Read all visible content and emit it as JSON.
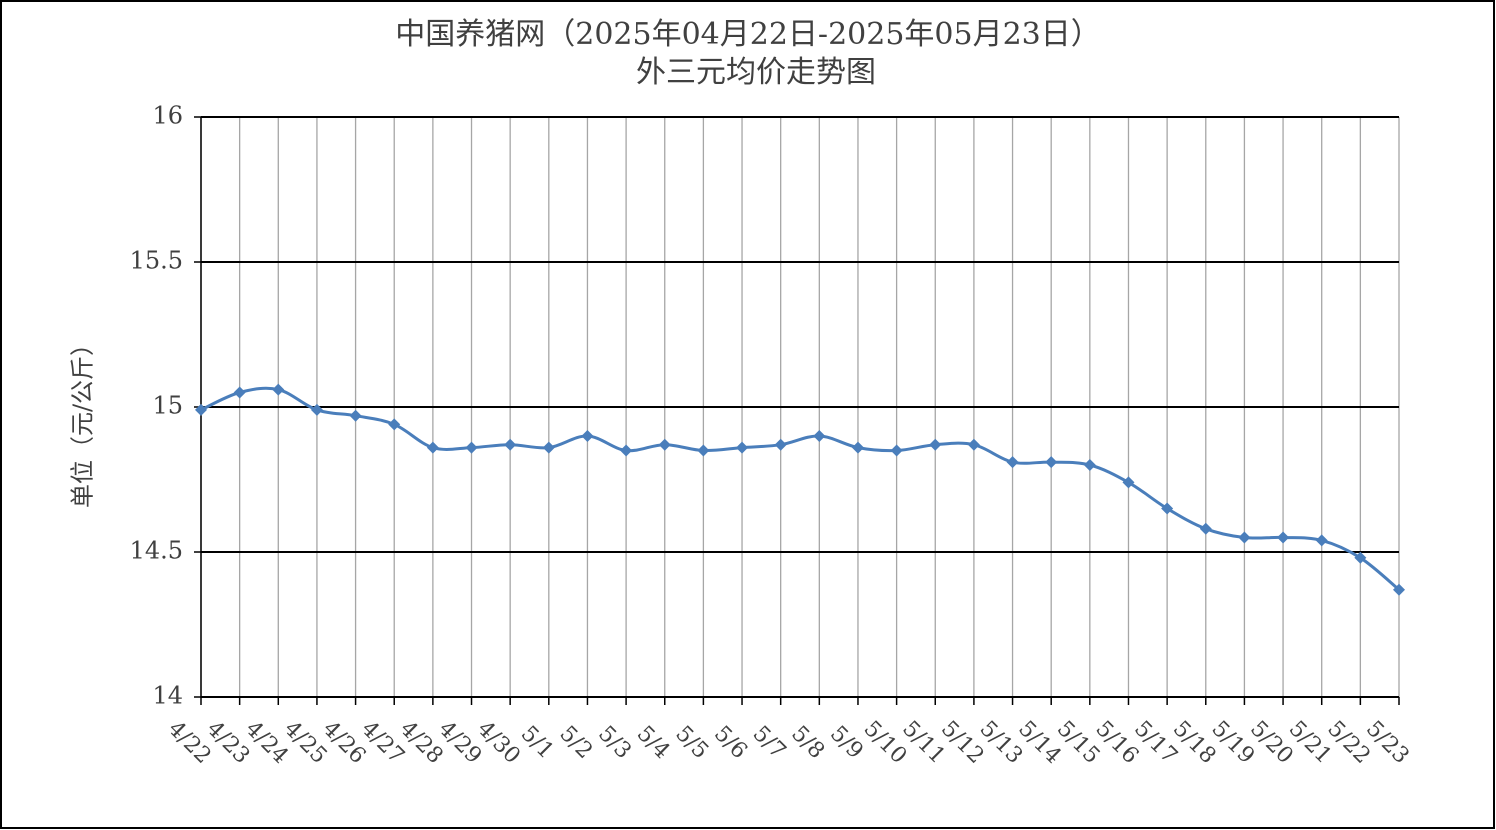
{
  "chart_data": {
    "type": "line",
    "title": "中国养猪网（2025年04月22日-2025年05月23日）",
    "subtitle": "外三元均价走势图",
    "y_label": "单位（元/公斤）",
    "categories": [
      "4/22",
      "4/23",
      "4/24",
      "4/25",
      "4/26",
      "4/27",
      "4/28",
      "4/29",
      "4/30",
      "5/1",
      "5/2",
      "5/3",
      "5/4",
      "5/5",
      "5/6",
      "5/7",
      "5/8",
      "5/9",
      "5/10",
      "5/11",
      "5/12",
      "5/13",
      "5/14",
      "5/15",
      "5/16",
      "5/17",
      "5/18",
      "5/19",
      "5/20",
      "5/21",
      "5/22",
      "5/23"
    ],
    "series": [
      {
        "color": "#4a7ebb",
        "values": [
          14.99,
          15.05,
          15.06,
          14.99,
          14.97,
          14.94,
          14.86,
          14.86,
          14.87,
          14.86,
          14.9,
          14.85,
          14.87,
          14.85,
          14.86,
          14.87,
          14.9,
          14.86,
          14.85,
          14.87,
          14.87,
          14.81,
          14.81,
          14.8,
          14.74,
          14.65,
          14.58,
          14.55,
          14.55,
          14.54,
          14.48,
          14.37
        ]
      }
    ],
    "ylim": [
      14,
      16
    ],
    "yticks": [
      14,
      14.5,
      15,
      15.5,
      16
    ],
    "grid": true
  }
}
